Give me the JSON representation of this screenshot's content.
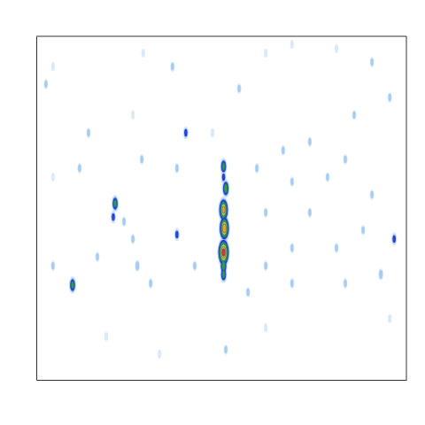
{
  "chart_data": {
    "type": "contour",
    "xlim": [
      0,
      100
    ],
    "ylim": [
      0,
      100
    ],
    "tick_labels": false,
    "grid": false,
    "color_levels": [
      0.05,
      0.15,
      0.25,
      0.4,
      0.55,
      0.7,
      0.85
    ],
    "colors": [
      "#dbeaf8",
      "#a6cdf0",
      "#2a3ed8",
      "#2f9a48",
      "#b8d83a",
      "#f2a033",
      "#e8302a"
    ],
    "points": [
      {
        "x": 50.6,
        "y": 62.1,
        "value": 0.45
      },
      {
        "x": 50.6,
        "y": 59.0,
        "value": 0.3
      },
      {
        "x": 51.2,
        "y": 55.7,
        "value": 0.5
      },
      {
        "x": 50.6,
        "y": 49.5,
        "value": 0.75
      },
      {
        "x": 50.8,
        "y": 44.1,
        "value": 0.8
      },
      {
        "x": 50.6,
        "y": 37.1,
        "value": 0.9
      },
      {
        "x": 50.6,
        "y": 33.2,
        "value": 0.5
      },
      {
        "x": 50.6,
        "y": 30.7,
        "value": 0.45
      },
      {
        "x": 21.3,
        "y": 51.3,
        "value": 0.45
      },
      {
        "x": 20.8,
        "y": 47.4,
        "value": 0.3
      },
      {
        "x": 9.8,
        "y": 27.6,
        "value": 0.45
      },
      {
        "x": 2.6,
        "y": 86.1,
        "value": 0.2
      },
      {
        "x": 4.5,
        "y": 91.2,
        "value": 0.15
      },
      {
        "x": 28.9,
        "y": 95.1,
        "value": 0.15
      },
      {
        "x": 36.8,
        "y": 91.2,
        "value": 0.2
      },
      {
        "x": 40.4,
        "y": 71.9,
        "value": 0.3
      },
      {
        "x": 26.1,
        "y": 77.1,
        "value": 0.15
      },
      {
        "x": 14.1,
        "y": 71.9,
        "value": 0.2
      },
      {
        "x": 54.8,
        "y": 84.8,
        "value": 0.2
      },
      {
        "x": 62.0,
        "y": 95.1,
        "value": 0.15
      },
      {
        "x": 69.1,
        "y": 97.7,
        "value": 0.15
      },
      {
        "x": 81.1,
        "y": 96.4,
        "value": 0.15
      },
      {
        "x": 90.7,
        "y": 92.5,
        "value": 0.2
      },
      {
        "x": 95.5,
        "y": 82.2,
        "value": 0.2
      },
      {
        "x": 85.9,
        "y": 77.1,
        "value": 0.2
      },
      {
        "x": 73.9,
        "y": 69.3,
        "value": 0.2
      },
      {
        "x": 66.7,
        "y": 66.8,
        "value": 0.2
      },
      {
        "x": 59.6,
        "y": 61.6,
        "value": 0.2
      },
      {
        "x": 78.7,
        "y": 59.0,
        "value": 0.2
      },
      {
        "x": 90.7,
        "y": 53.9,
        "value": 0.2
      },
      {
        "x": 96.7,
        "y": 41.0,
        "value": 0.3
      },
      {
        "x": 88.3,
        "y": 43.6,
        "value": 0.2
      },
      {
        "x": 81.1,
        "y": 38.4,
        "value": 0.2
      },
      {
        "x": 73.9,
        "y": 48.7,
        "value": 0.2
      },
      {
        "x": 69.1,
        "y": 38.4,
        "value": 0.2
      },
      {
        "x": 62.0,
        "y": 33.2,
        "value": 0.2
      },
      {
        "x": 57.2,
        "y": 25.5,
        "value": 0.2
      },
      {
        "x": 69.1,
        "y": 28.1,
        "value": 0.2
      },
      {
        "x": 83.5,
        "y": 28.1,
        "value": 0.2
      },
      {
        "x": 93.1,
        "y": 30.7,
        "value": 0.25
      },
      {
        "x": 95.5,
        "y": 17.8,
        "value": 0.15
      },
      {
        "x": 62.0,
        "y": 15.2,
        "value": 0.15
      },
      {
        "x": 51.2,
        "y": 8.8,
        "value": 0.2
      },
      {
        "x": 33.3,
        "y": 7.5,
        "value": 0.15
      },
      {
        "x": 18.9,
        "y": 12.6,
        "value": 0.15
      },
      {
        "x": 4.5,
        "y": 33.2,
        "value": 0.2
      },
      {
        "x": 16.5,
        "y": 35.8,
        "value": 0.2
      },
      {
        "x": 26.1,
        "y": 41.0,
        "value": 0.2
      },
      {
        "x": 38.0,
        "y": 42.3,
        "value": 0.3
      },
      {
        "x": 42.8,
        "y": 33.2,
        "value": 0.2
      },
      {
        "x": 30.9,
        "y": 28.1,
        "value": 0.2
      },
      {
        "x": 23.7,
        "y": 46.1,
        "value": 0.2
      },
      {
        "x": 4.5,
        "y": 59.0,
        "value": 0.15
      },
      {
        "x": 11.7,
        "y": 61.6,
        "value": 0.2
      },
      {
        "x": 38.0,
        "y": 61.6,
        "value": 0.2
      },
      {
        "x": 47.6,
        "y": 71.9,
        "value": 0.15
      },
      {
        "x": 83.5,
        "y": 64.2,
        "value": 0.2
      },
      {
        "x": 28.5,
        "y": 64.2,
        "value": 0.2
      },
      {
        "x": 62.0,
        "y": 48.7,
        "value": 0.2
      },
      {
        "x": 27.3,
        "y": 33.2,
        "value": 0.25
      },
      {
        "x": 69.1,
        "y": 57.7,
        "value": 0.2
      }
    ]
  }
}
